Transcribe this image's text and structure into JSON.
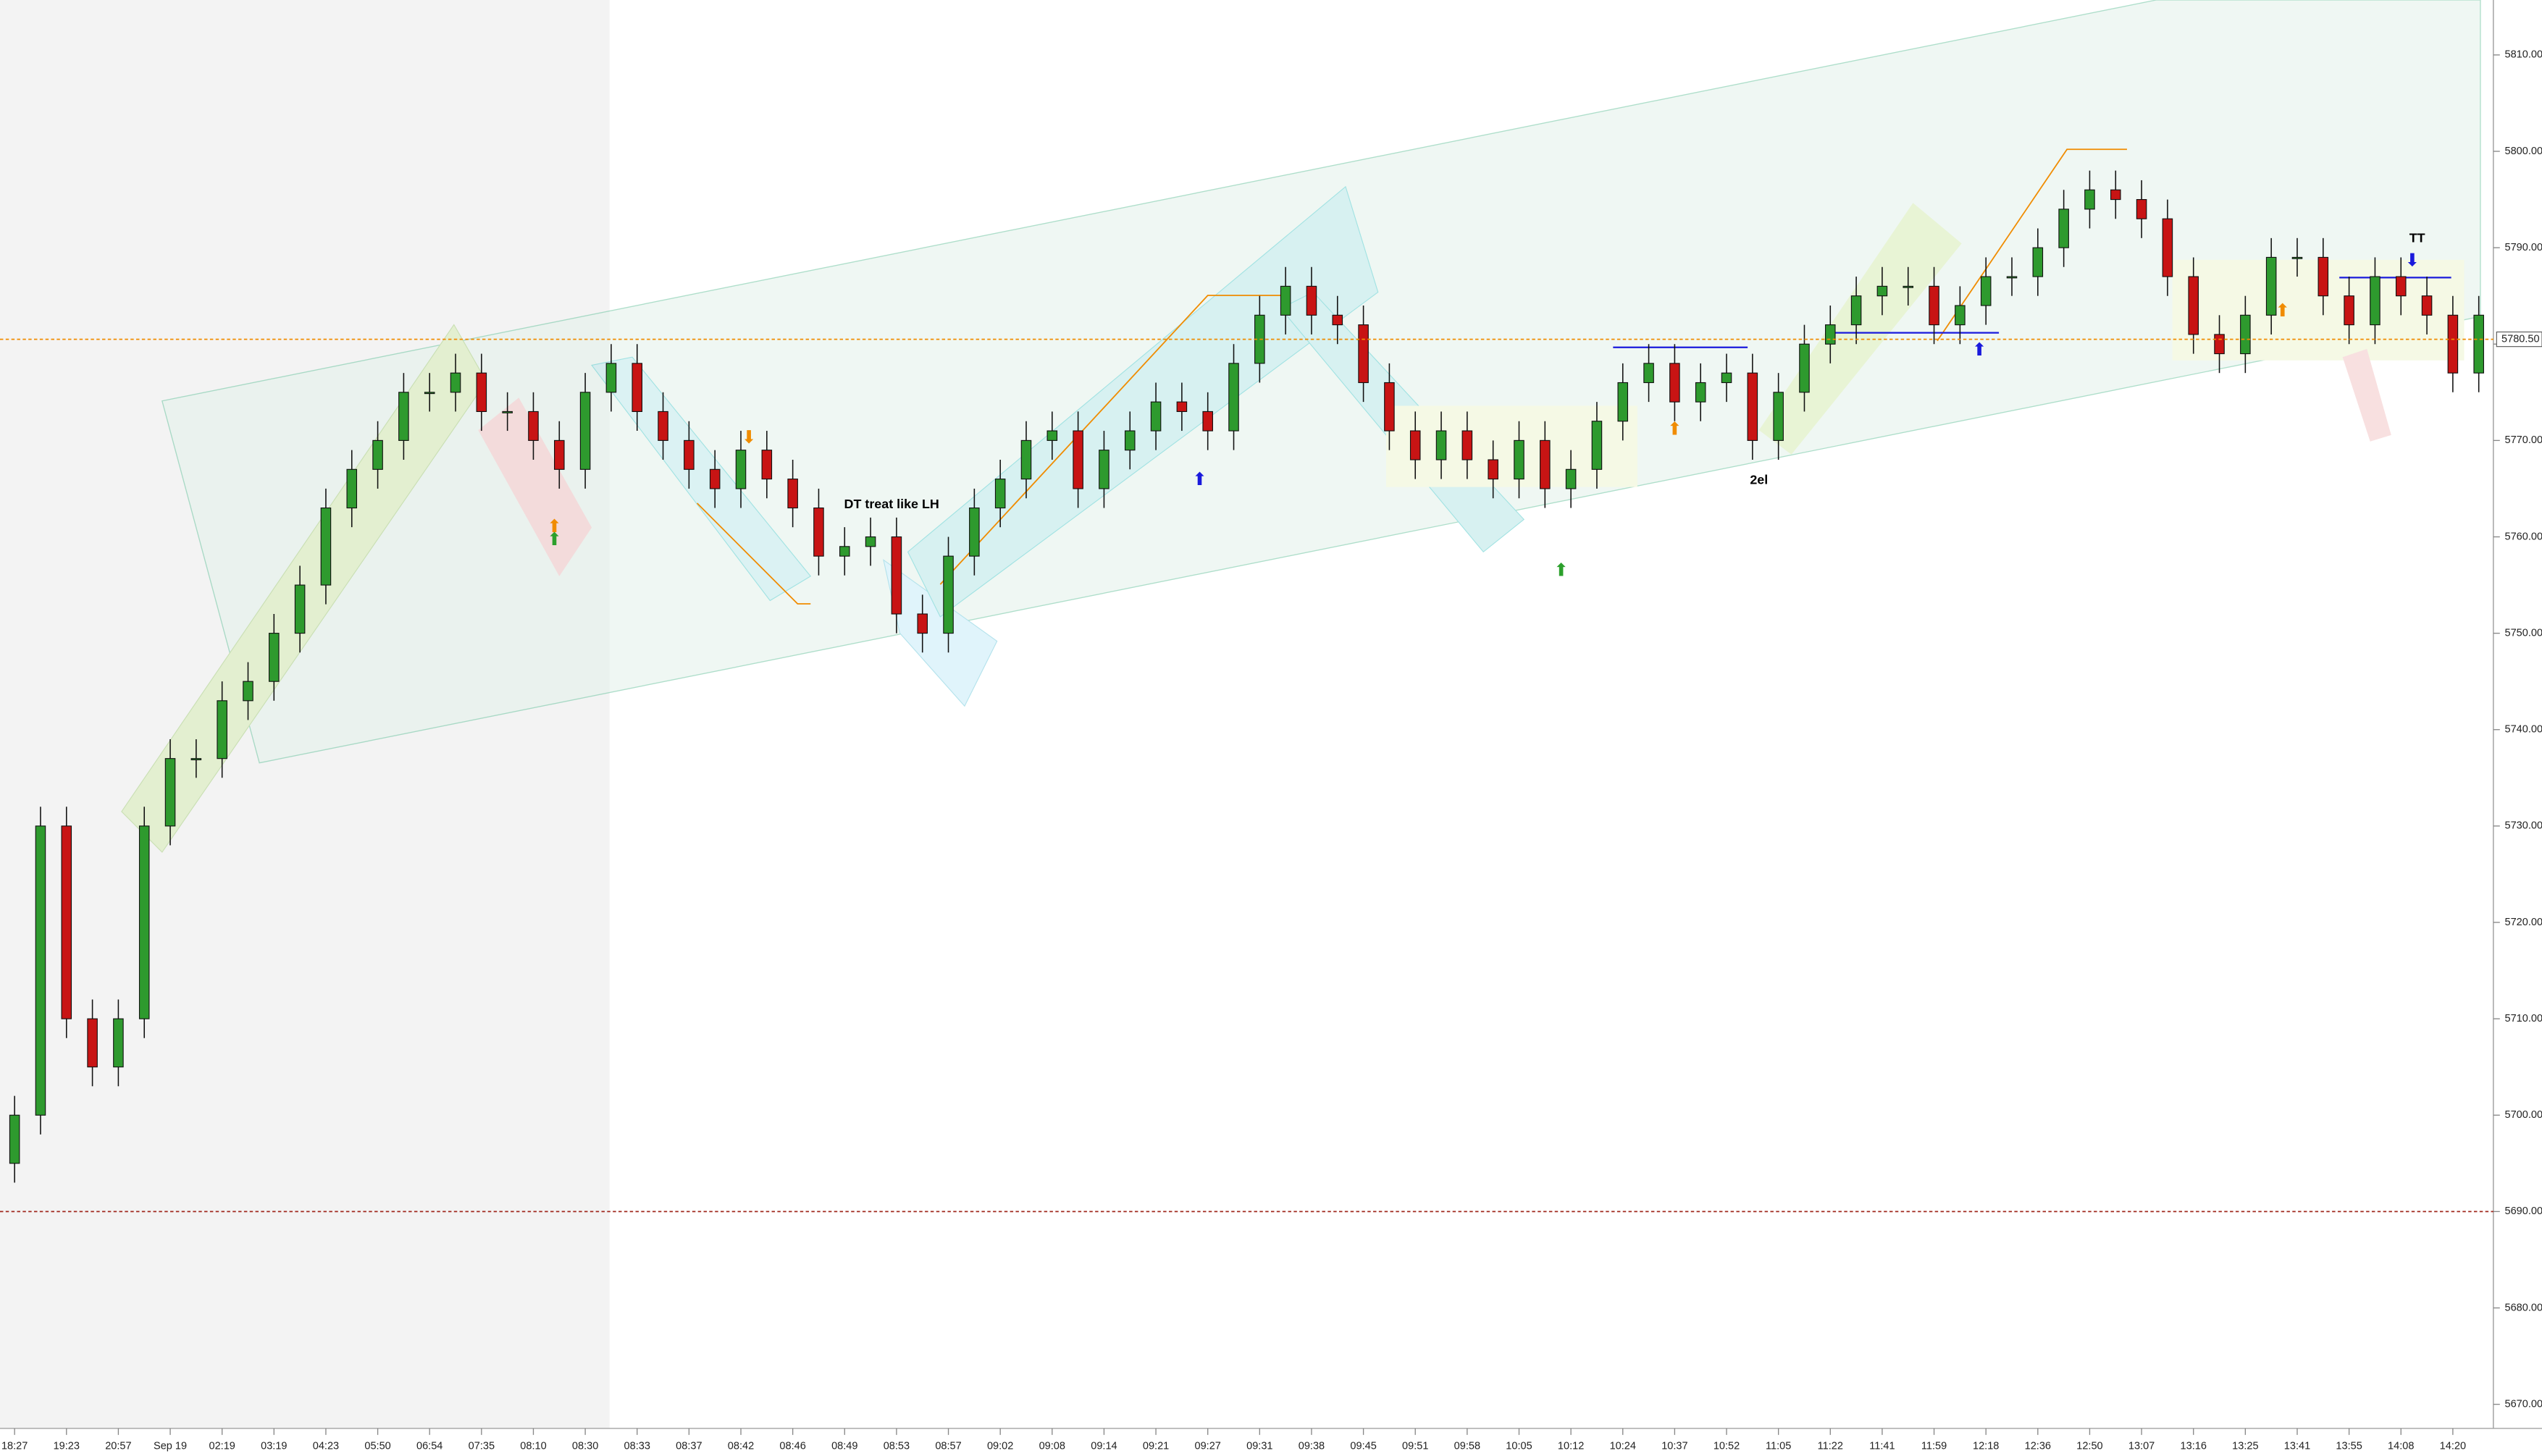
{
  "chart_data": {
    "type": "candlestick",
    "categories": [
      "18:27",
      null,
      "19:23",
      null,
      "20:57",
      null,
      "Sep 19",
      null,
      "02:19",
      null,
      "03:19",
      null,
      "04:23",
      null,
      "05:50",
      null,
      "06:54",
      null,
      "07:35",
      null,
      "08:10",
      null,
      "08:30",
      null,
      "08:33",
      null,
      "08:37",
      null,
      "08:42",
      null,
      "08:46",
      null,
      "08:49",
      null,
      "08:53",
      null,
      "08:57",
      null,
      "09:02",
      null,
      "09:08",
      null,
      "09:14",
      null,
      "09:21",
      null,
      "09:27",
      null,
      "09:31",
      null,
      "09:38",
      null,
      "09:45",
      null,
      "09:51",
      null,
      "09:58",
      null,
      "10:05",
      null,
      "10:12",
      null,
      "10:24",
      null,
      "10:37",
      null,
      "10:52",
      null,
      "11:05",
      null,
      "11:22",
      null,
      "11:41",
      null,
      "11:59",
      null,
      "12:18",
      null,
      "12:36",
      null,
      "12:50",
      null,
      "13:07",
      null,
      "13:16",
      null,
      "13:25",
      null,
      "13:41",
      null,
      "13:55",
      null,
      "14:08",
      null,
      "14:20",
      null
    ],
    "open": [
      5695,
      5700,
      5730,
      5710,
      5705,
      5710,
      5730,
      5737,
      5737,
      5743,
      5745,
      5750,
      5755,
      5763,
      5767,
      5770,
      5775,
      5775,
      5777,
      5773,
      5773,
      5770,
      5767,
      5775,
      5778,
      5773,
      5770,
      5767,
      5765,
      5769,
      5766,
      5763,
      5758,
      5759,
      5760,
      5752,
      5750,
      5758,
      5763,
      5766,
      5770,
      5771,
      5765,
      5769,
      5771,
      5774,
      5773,
      5771,
      5778,
      5783,
      5786,
      5783,
      5782,
      5776,
      5771,
      5768,
      5771,
      5768,
      5766,
      5770,
      5765,
      5767,
      5772,
      5776,
      5778,
      5774,
      5776,
      5777,
      5770,
      5775,
      5780,
      5782,
      5785,
      5786,
      5786,
      5782,
      5784,
      5787,
      5787,
      5790,
      5794,
      5796,
      5795,
      5793,
      5787,
      5781,
      5779,
      5783,
      5789,
      5789,
      5785,
      5782,
      5787,
      5785,
      5783,
      5777
    ],
    "high": [
      5702,
      5732,
      5732,
      5712,
      5712,
      5732,
      5739,
      5739,
      5745,
      5747,
      5752,
      5757,
      5765,
      5769,
      5772,
      5777,
      5777,
      5779,
      5779,
      5775,
      5775,
      5772,
      5777,
      5780,
      5780,
      5775,
      5772,
      5769,
      5771,
      5771,
      5768,
      5765,
      5761,
      5762,
      5762,
      5754,
      5760,
      5765,
      5768,
      5772,
      5773,
      5773,
      5771,
      5773,
      5776,
      5776,
      5775,
      5780,
      5785,
      5788,
      5788,
      5785,
      5784,
      5778,
      5773,
      5773,
      5773,
      5770,
      5772,
      5772,
      5769,
      5774,
      5778,
      5780,
      5780,
      5778,
      5779,
      5779,
      5777,
      5782,
      5784,
      5787,
      5788,
      5788,
      5788,
      5786,
      5789,
      5789,
      5792,
      5796,
      5798,
      5798,
      5797,
      5795,
      5789,
      5783,
      5785,
      5791,
      5791,
      5791,
      5787,
      5789,
      5789,
      5787,
      5785,
      5785
    ],
    "low": [
      5693,
      5698,
      5708,
      5703,
      5703,
      5708,
      5728,
      5735,
      5735,
      5741,
      5743,
      5748,
      5753,
      5761,
      5765,
      5768,
      5773,
      5773,
      5771,
      5771,
      5768,
      5765,
      5765,
      5773,
      5771,
      5768,
      5765,
      5763,
      5763,
      5764,
      5761,
      5756,
      5756,
      5757,
      5750,
      5748,
      5748,
      5756,
      5761,
      5764,
      5768,
      5763,
      5763,
      5767,
      5769,
      5771,
      5769,
      5769,
      5776,
      5781,
      5781,
      5780,
      5774,
      5769,
      5766,
      5766,
      5766,
      5764,
      5764,
      5763,
      5763,
      5765,
      5770,
      5774,
      5772,
      5772,
      5774,
      5768,
      5768,
      5773,
      5778,
      5780,
      5783,
      5784,
      5780,
      5780,
      5782,
      5785,
      5785,
      5788,
      5792,
      5793,
      5791,
      5785,
      5779,
      5777,
      5777,
      5781,
      5787,
      5783,
      5780,
      5780,
      5783,
      5781,
      5775,
      5775
    ],
    "close": [
      5700,
      5730,
      5710,
      5705,
      5710,
      5730,
      5737,
      5737,
      5743,
      5745,
      5750,
      5755,
      5763,
      5767,
      5770,
      5775,
      5775,
      5777,
      5773,
      5773,
      5770,
      5767,
      5775,
      5778,
      5773,
      5770,
      5767,
      5765,
      5769,
      5766,
      5763,
      5758,
      5759,
      5760,
      5752,
      5750,
      5758,
      5763,
      5766,
      5770,
      5771,
      5765,
      5769,
      5771,
      5774,
      5773,
      5771,
      5778,
      5783,
      5786,
      5783,
      5782,
      5776,
      5771,
      5768,
      5771,
      5768,
      5766,
      5770,
      5765,
      5767,
      5772,
      5776,
      5778,
      5774,
      5776,
      5777,
      5770,
      5775,
      5780,
      5782,
      5785,
      5786,
      5786,
      5782,
      5784,
      5787,
      5787,
      5790,
      5794,
      5796,
      5795,
      5793,
      5787,
      5781,
      5779,
      5783,
      5789,
      5789,
      5785,
      5782,
      5787,
      5785,
      5783,
      5777,
      5783
    ],
    "up_color": "#2e9a2e",
    "down_color": "#c81414",
    "ylim": [
      5667.5,
      5815.7
    ],
    "yticks": [
      {
        "value": 5670,
        "label": "5670.00"
      },
      {
        "value": 5680,
        "label": "5680.00"
      },
      {
        "value": 5690,
        "label": "5690.00"
      },
      {
        "value": 5700,
        "label": "5700.00"
      },
      {
        "value": 5710,
        "label": "5710.00"
      },
      {
        "value": 5720,
        "label": "5720.00"
      },
      {
        "value": 5730,
        "label": "5730.00"
      },
      {
        "value": 5740,
        "label": "5740.00"
      },
      {
        "value": 5750,
        "label": "5750.00"
      },
      {
        "value": 5760,
        "label": "5760.00"
      },
      {
        "value": 5770,
        "label": "5770.00"
      },
      {
        "value": 5780,
        "label": "5780.00"
      },
      {
        "value": 5790,
        "label": "5790.00"
      },
      {
        "value": 5800,
        "label": "5800.00"
      },
      {
        "value": 5810,
        "label": "5810.00"
      }
    ],
    "hlines": [
      {
        "value": 5780.5,
        "label": "5780.50",
        "color": "#f08c00"
      },
      {
        "value": 5690,
        "color": "#a0281e"
      }
    ],
    "annotations": [
      "DT treat like LH",
      "2el",
      "TT"
    ]
  }
}
